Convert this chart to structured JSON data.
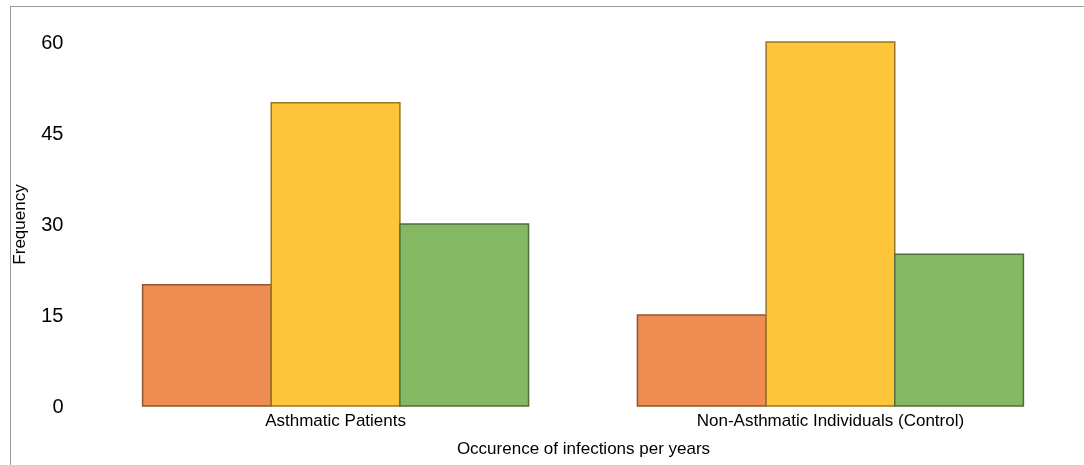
{
  "chart_data": {
    "type": "bar",
    "xlabel": "Occurence of infections per years",
    "ylabel": "Frequency",
    "categories": [
      "Asthmatic Patients",
      "Non-Asthmatic Individuals (Control)"
    ],
    "series": [
      {
        "color": "#ef8c51",
        "values": [
          20,
          15
        ]
      },
      {
        "color": "#fec53a",
        "values": [
          50,
          60
        ]
      },
      {
        "color": "#84b862",
        "values": [
          30,
          25
        ]
      }
    ],
    "ylim": [
      0,
      60
    ],
    "yticks": [
      0,
      15,
      30,
      45,
      60
    ],
    "grid": false,
    "legend": false
  }
}
